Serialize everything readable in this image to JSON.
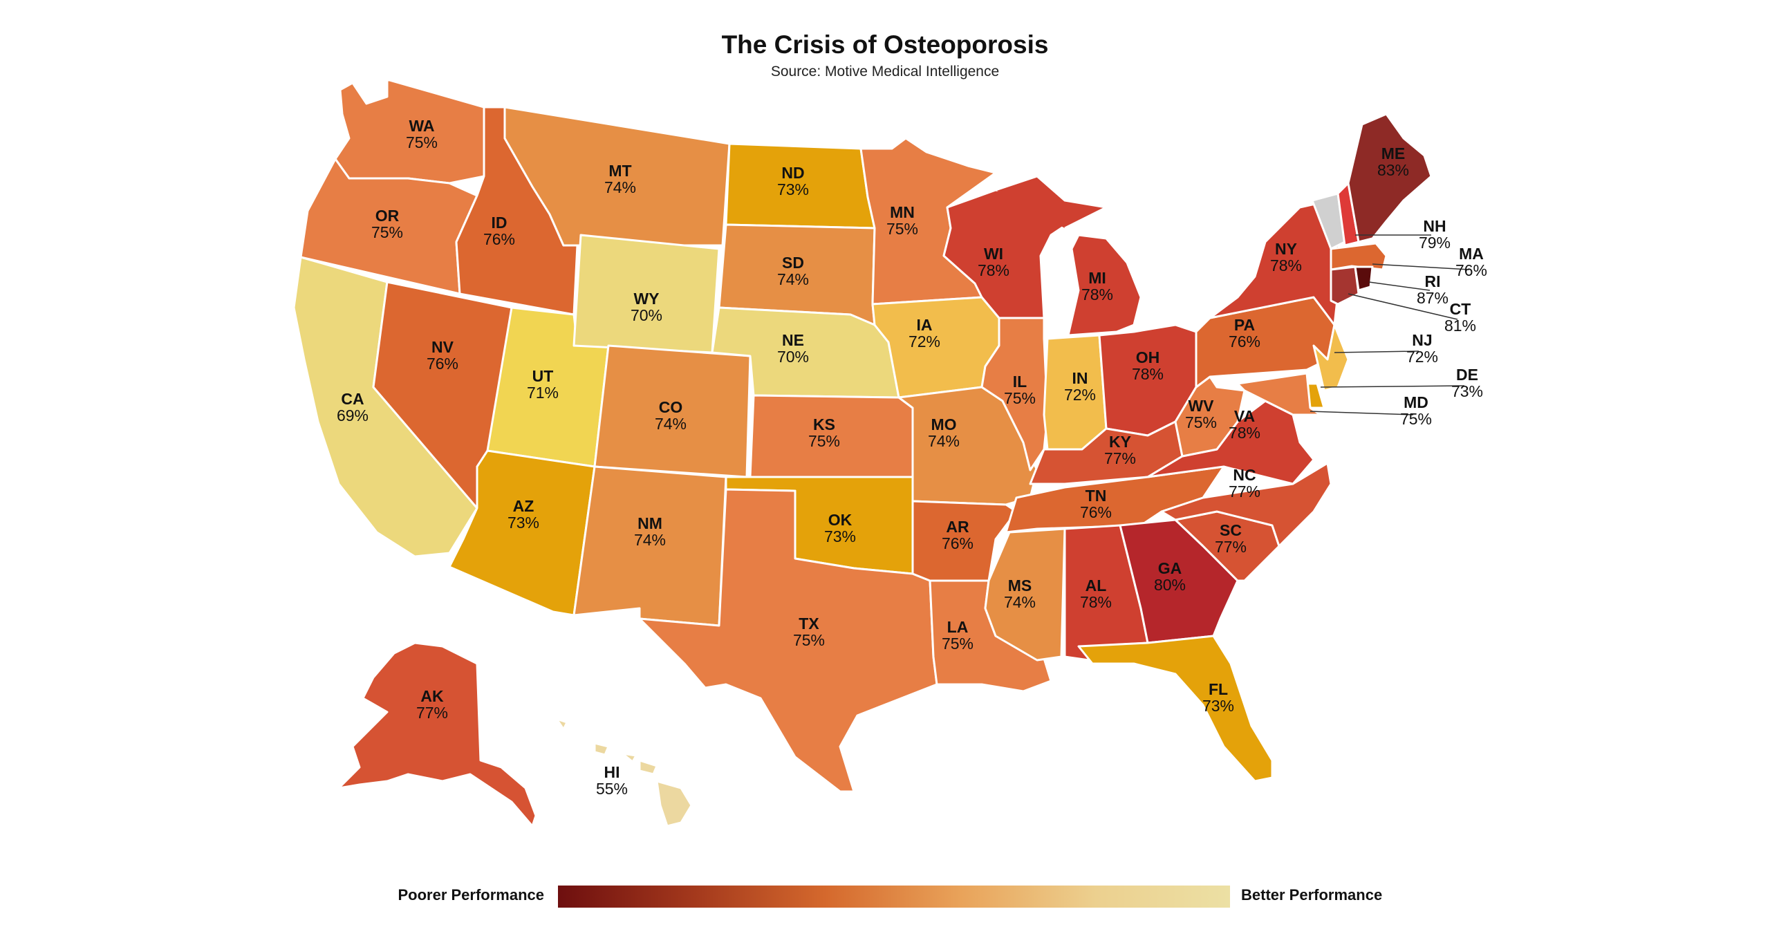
{
  "title": "The Crisis of Osteoporosis",
  "subtitle": "Source: Motive Medical Intelligence",
  "legend": {
    "low_label": "Poorer Performance",
    "high_label": "Better Performance",
    "gradient": [
      "#6e0f0f",
      "#a3381c",
      "#d5692d",
      "#e9a35a",
      "#ecd08f",
      "#ece0a4"
    ]
  },
  "colors": {
    "no_data": "#d0d0d0"
  },
  "states": [
    {
      "abbr": "WA",
      "value": "75%",
      "color": "#e77e45"
    },
    {
      "abbr": "OR",
      "value": "75%",
      "color": "#e77e45"
    },
    {
      "abbr": "CA",
      "value": "69%",
      "color": "#ecd87c"
    },
    {
      "abbr": "ID",
      "value": "76%",
      "color": "#dc6730"
    },
    {
      "abbr": "NV",
      "value": "76%",
      "color": "#dc6730"
    },
    {
      "abbr": "UT",
      "value": "71%",
      "color": "#f1d552"
    },
    {
      "abbr": "AZ",
      "value": "73%",
      "color": "#e4a20a"
    },
    {
      "abbr": "MT",
      "value": "74%",
      "color": "#e68f45"
    },
    {
      "abbr": "WY",
      "value": "70%",
      "color": "#ecd87c"
    },
    {
      "abbr": "CO",
      "value": "74%",
      "color": "#e68f45"
    },
    {
      "abbr": "NM",
      "value": "74%",
      "color": "#e68f45"
    },
    {
      "abbr": "ND",
      "value": "73%",
      "color": "#e4a20a"
    },
    {
      "abbr": "SD",
      "value": "74%",
      "color": "#e68f45"
    },
    {
      "abbr": "NE",
      "value": "70%",
      "color": "#ecd87c"
    },
    {
      "abbr": "KS",
      "value": "75%",
      "color": "#e77e45"
    },
    {
      "abbr": "OK",
      "value": "73%",
      "color": "#e4a20a"
    },
    {
      "abbr": "TX",
      "value": "75%",
      "color": "#e77e45"
    },
    {
      "abbr": "MN",
      "value": "75%",
      "color": "#e77e45"
    },
    {
      "abbr": "IA",
      "value": "72%",
      "color": "#f2bd4c"
    },
    {
      "abbr": "MO",
      "value": "74%",
      "color": "#e68f45"
    },
    {
      "abbr": "AR",
      "value": "76%",
      "color": "#dc6730"
    },
    {
      "abbr": "LA",
      "value": "75%",
      "color": "#e77e45"
    },
    {
      "abbr": "WI",
      "value": "78%",
      "color": "#cf4030"
    },
    {
      "abbr": "IL",
      "value": "75%",
      "color": "#e77e45"
    },
    {
      "abbr": "MI",
      "value": "78%",
      "color": "#cf4030"
    },
    {
      "abbr": "IN",
      "value": "72%",
      "color": "#f2bd4c"
    },
    {
      "abbr": "OH",
      "value": "78%",
      "color": "#cf4030"
    },
    {
      "abbr": "KY",
      "value": "77%",
      "color": "#d65333"
    },
    {
      "abbr": "TN",
      "value": "76%",
      "color": "#dc6730"
    },
    {
      "abbr": "MS",
      "value": "74%",
      "color": "#e68f45"
    },
    {
      "abbr": "AL",
      "value": "78%",
      "color": "#cf4030"
    },
    {
      "abbr": "GA",
      "value": "80%",
      "color": "#b5262b"
    },
    {
      "abbr": "FL",
      "value": "73%",
      "color": "#e4a20a"
    },
    {
      "abbr": "SC",
      "value": "77%",
      "color": "#d65333"
    },
    {
      "abbr": "NC",
      "value": "77%",
      "color": "#d65333"
    },
    {
      "abbr": "VA",
      "value": "78%",
      "color": "#cf4030"
    },
    {
      "abbr": "WV",
      "value": "75%",
      "color": "#e77e45"
    },
    {
      "abbr": "PA",
      "value": "76%",
      "color": "#dc6730"
    },
    {
      "abbr": "NY",
      "value": "78%",
      "color": "#cf4030"
    },
    {
      "abbr": "ME",
      "value": "83%",
      "color": "#8e2a26"
    },
    {
      "abbr": "AK",
      "value": "77%",
      "color": "#d65333"
    },
    {
      "abbr": "HI",
      "value": "55%",
      "color": "#ecd8a0"
    },
    {
      "abbr": "NH",
      "value": "79%",
      "color": "#de3a37"
    },
    {
      "abbr": "MA",
      "value": "76%",
      "color": "#dc6730"
    },
    {
      "abbr": "RI",
      "value": "87%",
      "color": "#5a0c0c"
    },
    {
      "abbr": "CT",
      "value": "81%",
      "color": "#a53530"
    },
    {
      "abbr": "NJ",
      "value": "72%",
      "color": "#f2bd4c"
    },
    {
      "abbr": "DE",
      "value": "73%",
      "color": "#e4a20a"
    },
    {
      "abbr": "MD",
      "value": "75%",
      "color": "#e77e45"
    }
  ]
}
